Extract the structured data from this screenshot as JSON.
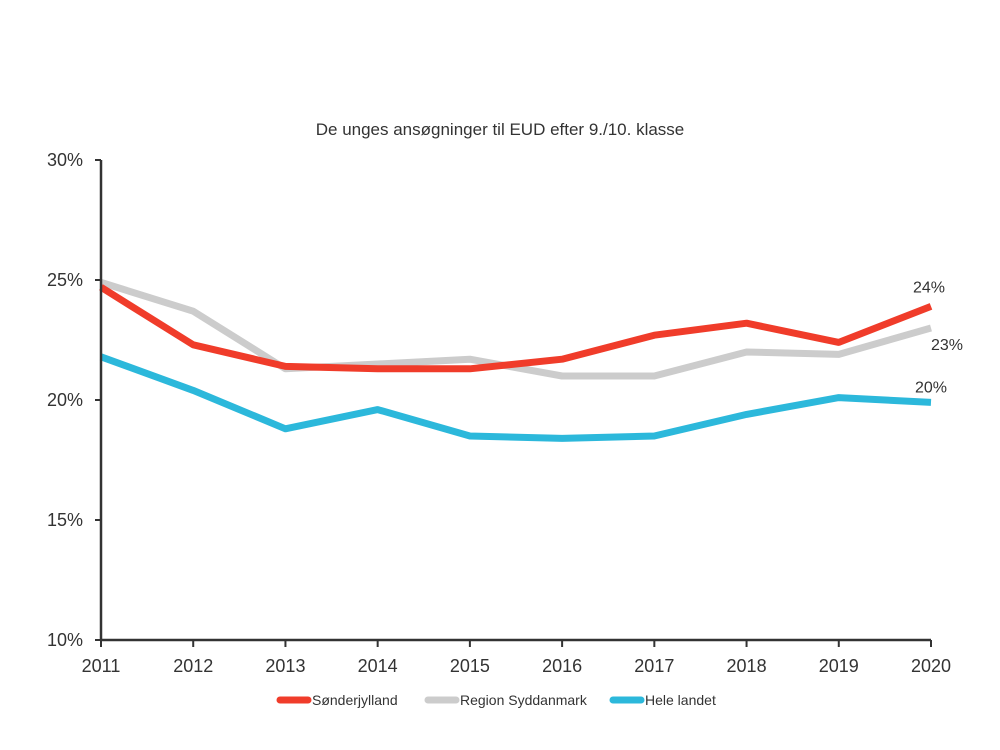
{
  "chart_data": {
    "type": "line",
    "title": "De unges ansøgninger til EUD efter 9./10. klasse",
    "xlabel": "",
    "ylabel": "",
    "x": [
      "2011",
      "2012",
      "2013",
      "2014",
      "2015",
      "2016",
      "2017",
      "2018",
      "2019",
      "2020"
    ],
    "ylim": [
      10,
      30
    ],
    "yticks": [
      10,
      15,
      20,
      25,
      30
    ],
    "ytick_labels": [
      "10%",
      "15%",
      "20%",
      "25%",
      "30%"
    ],
    "grid": false,
    "legend_position": "bottom",
    "series": [
      {
        "name": "Sønderjylland",
        "color": "#f03c2a",
        "values": [
          24.7,
          22.3,
          21.4,
          21.3,
          21.3,
          21.7,
          22.7,
          23.2,
          22.4,
          23.9
        ],
        "end_label": "24%"
      },
      {
        "name": "Region Syddanmark",
        "color": "#cccccc",
        "values": [
          24.9,
          23.7,
          21.3,
          21.5,
          21.7,
          21.0,
          21.0,
          22.0,
          21.9,
          23.0
        ],
        "end_label": "23%"
      },
      {
        "name": "Hele landet",
        "color": "#2cb8db",
        "values": [
          21.8,
          20.4,
          18.8,
          19.6,
          18.5,
          18.4,
          18.5,
          19.4,
          20.1,
          19.9
        ],
        "end_label": "20%"
      }
    ]
  }
}
